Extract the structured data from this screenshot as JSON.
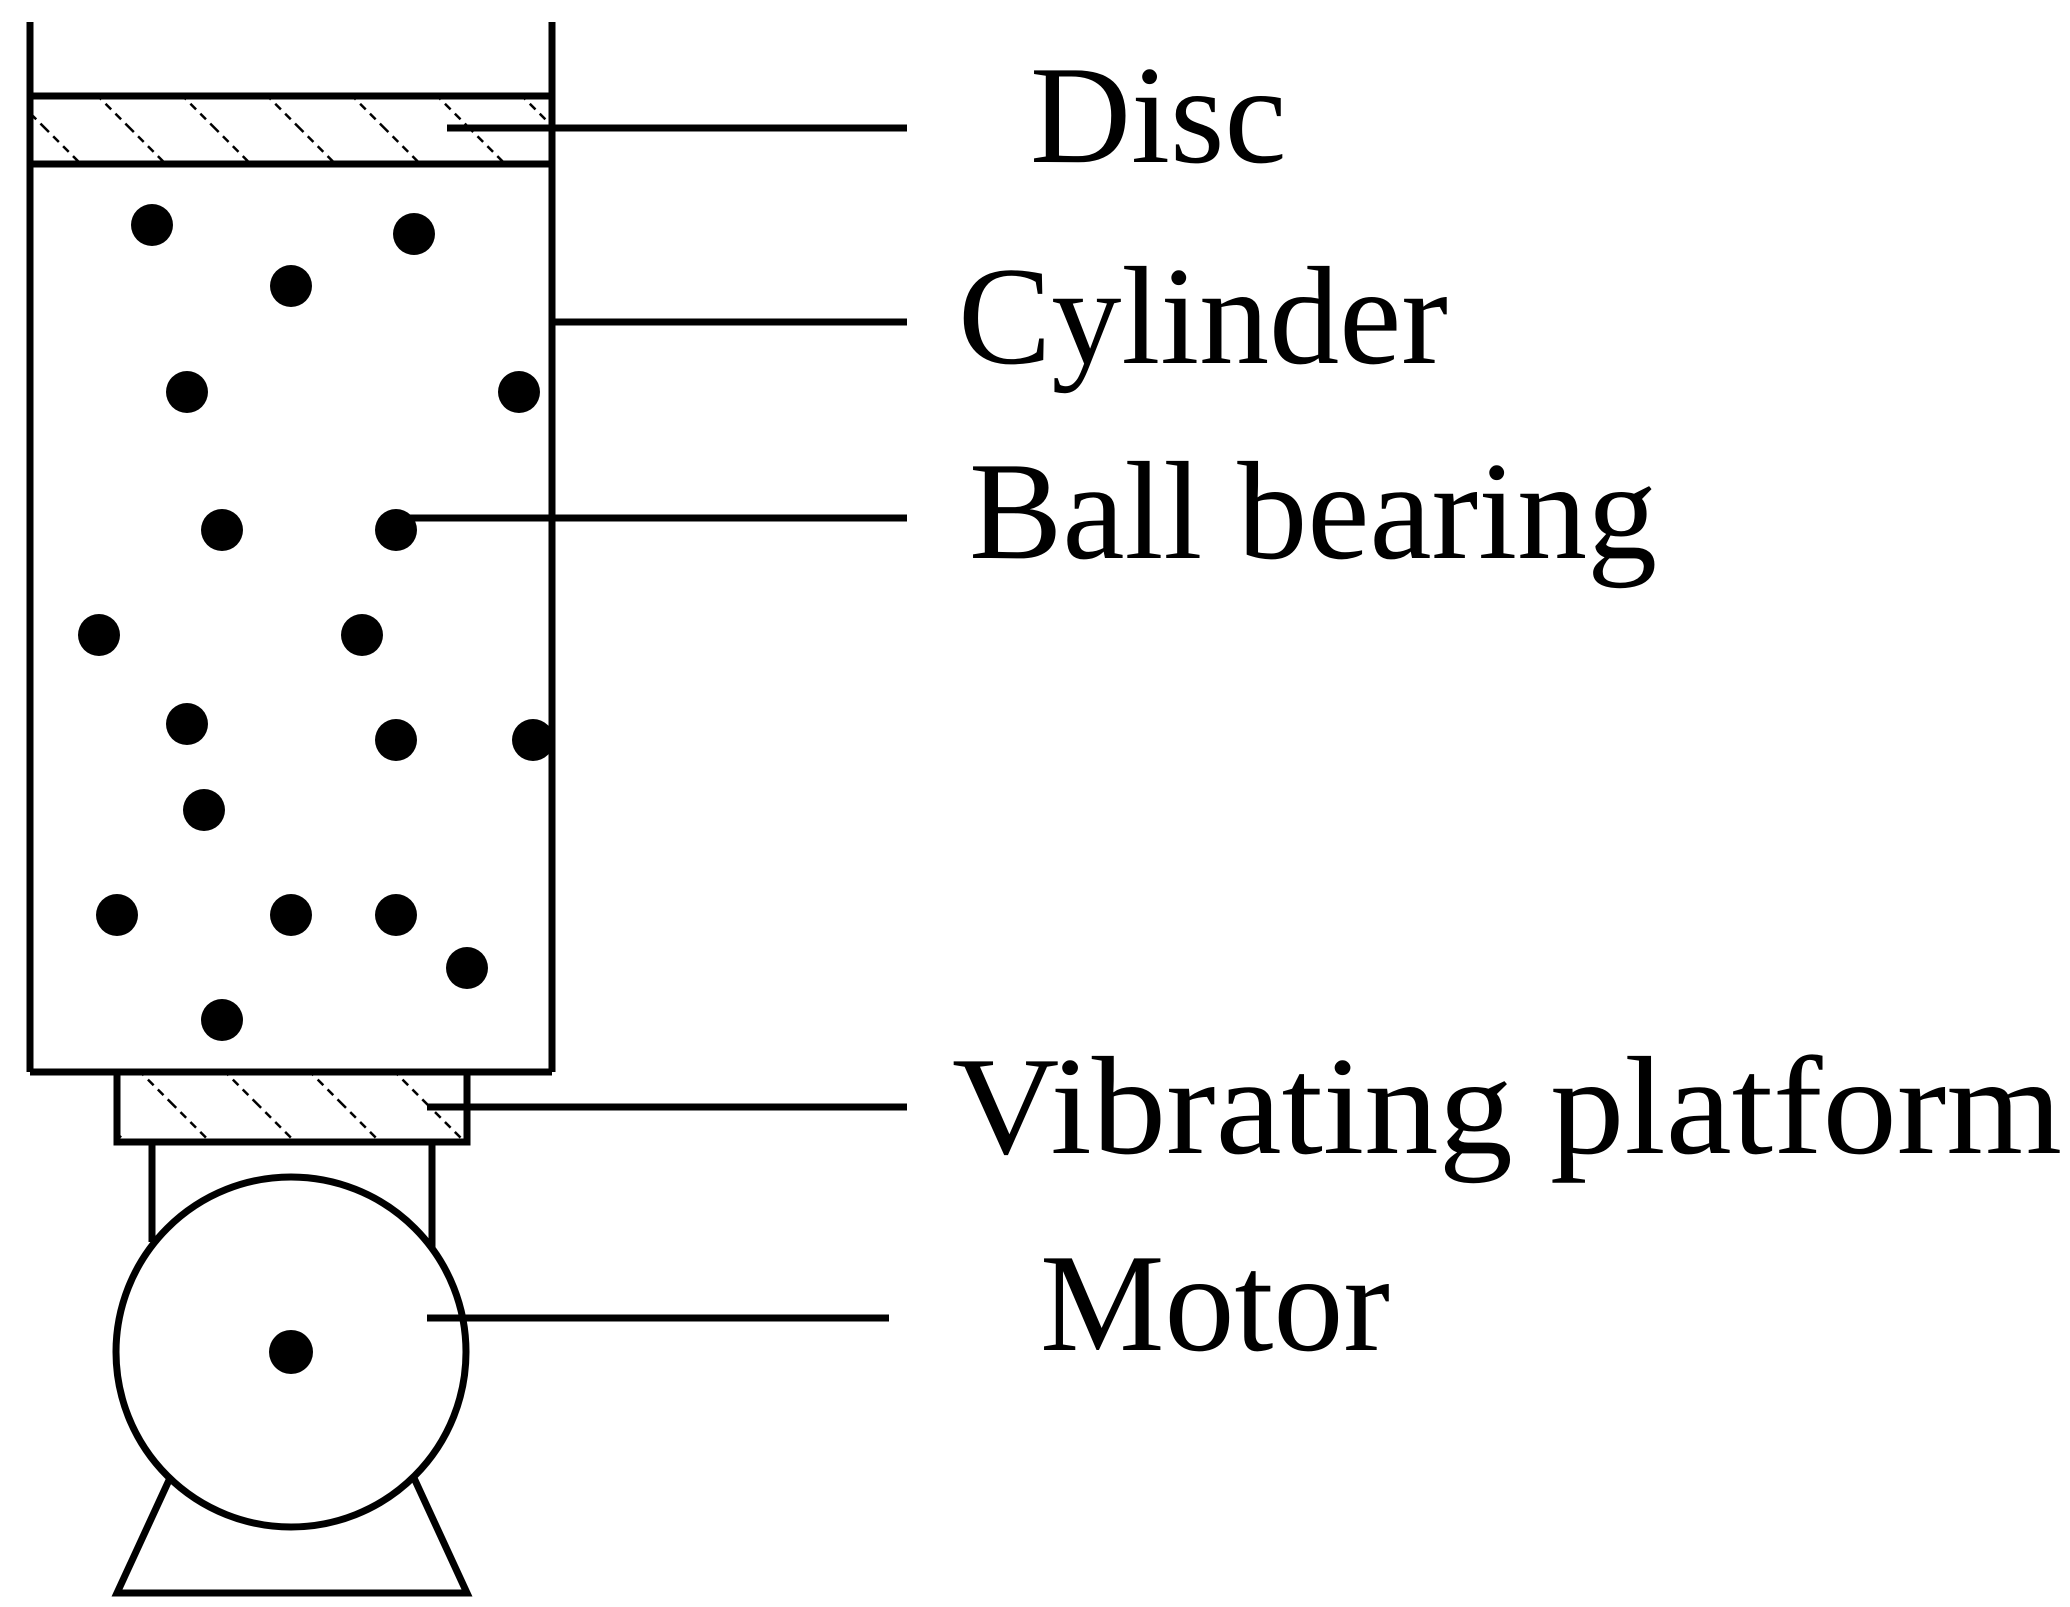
{
  "labels": {
    "disc": "Disc",
    "cylinder": "Cylinder",
    "ball_bearing": "Ball bearing",
    "vibrating_platform": "Vibrating platform",
    "motor": "Motor"
  },
  "colors": {
    "stroke": "#000000",
    "background": "#ffffff"
  }
}
